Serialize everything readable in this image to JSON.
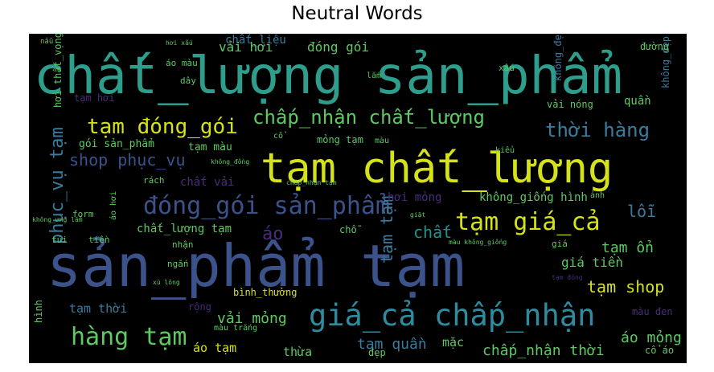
{
  "title": "Neutral Words",
  "chart_data": {
    "type": "wordcloud",
    "title": "Neutral Words",
    "background": "#000000",
    "palette": [
      "#2e9e8c",
      "#3b528b",
      "#d5e21a",
      "#5ec962",
      "#472d7b",
      "#21918c",
      "#440154"
    ],
    "words": [
      {
        "text": "chất_lượng sản_phẩm",
        "weight": 100,
        "color": "#2e9e8c"
      },
      {
        "text": "sản_phẩm tạm",
        "weight": 98,
        "color": "#3b528b"
      },
      {
        "text": "tạm chất_lượng",
        "weight": 80,
        "color": "#d5e21a"
      },
      {
        "text": "giá_cả chấp_nhận",
        "weight": 55,
        "color": "#2e8c9e"
      },
      {
        "text": "đóng_gói sản_phẩm",
        "weight": 45,
        "color": "#3b528b"
      },
      {
        "text": "tạm giá_cả",
        "weight": 44,
        "color": "#d5e21a"
      },
      {
        "text": "chấp_nhận chất_lượng",
        "weight": 40,
        "color": "#5ec962"
      },
      {
        "text": "tạm đóng_gói",
        "weight": 38,
        "color": "#d5e21a"
      },
      {
        "text": "hàng tạm",
        "weight": 42,
        "color": "#5ec962"
      },
      {
        "text": "thời hàng",
        "weight": 34,
        "color": "#3b7c9e"
      },
      {
        "text": "shop phục_vụ",
        "weight": 28,
        "color": "#3b528b"
      },
      {
        "text": "phục_vụ tạm",
        "weight": 30,
        "color": "#3b7c9e"
      },
      {
        "text": "tạm shop",
        "weight": 30,
        "color": "#d5e21a"
      },
      {
        "text": "tạm tạm",
        "weight": 30,
        "color": "#3b7c9e"
      },
      {
        "text": "chấp_nhận thời",
        "weight": 26,
        "color": "#5ec962"
      },
      {
        "text": "vải mỏng",
        "weight": 24,
        "color": "#5ec962"
      },
      {
        "text": "áo mỏng",
        "weight": 24,
        "color": "#5ec962"
      },
      {
        "text": "tạm quần",
        "weight": 22,
        "color": "#3b7c9e"
      },
      {
        "text": "lỗi",
        "weight": 24,
        "color": "#3b7c9e"
      },
      {
        "text": "áo",
        "weight": 26,
        "color": "#472d7b"
      },
      {
        "text": "chất",
        "weight": 24,
        "color": "#21918c"
      },
      {
        "text": "tạm ổn",
        "weight": 20,
        "color": "#5ec962"
      },
      {
        "text": "giá tiền",
        "weight": 18,
        "color": "#5ec962"
      },
      {
        "text": "tạm thời",
        "weight": 18,
        "color": "#3b7c9e"
      },
      {
        "text": "thừa",
        "weight": 18,
        "color": "#5ec962"
      },
      {
        "text": "áo tạm",
        "weight": 18,
        "color": "#d5e21a"
      },
      {
        "text": "mặc",
        "weight": 18,
        "color": "#5ec962"
      },
      {
        "text": "vải hơi",
        "weight": 16,
        "color": "#5ec962"
      },
      {
        "text": "đóng gói",
        "weight": 16,
        "color": "#5ec962"
      },
      {
        "text": "chất_liệu",
        "weight": 14,
        "color": "#3b7c9e"
      },
      {
        "text": "không_giống hình",
        "weight": 14,
        "color": "#5ec962"
      },
      {
        "text": "chất_lượng tạm",
        "weight": 14,
        "color": "#5ec962"
      },
      {
        "text": "chất vải",
        "weight": 14,
        "color": "#472d7b"
      },
      {
        "text": "hơi mỏng",
        "weight": 14,
        "color": "#472d7b"
      },
      {
        "text": "gói sản_phẩm",
        "weight": 13,
        "color": "#5ec962"
      },
      {
        "text": "tạm màu",
        "weight": 13,
        "color": "#5ec962"
      },
      {
        "text": "mỏng tạm",
        "weight": 12,
        "color": "#5ec962"
      },
      {
        "text": "vải nóng",
        "weight": 12,
        "color": "#5ec962"
      },
      {
        "text": "quần",
        "weight": 14,
        "color": "#5ec962"
      },
      {
        "text": "không_đẹp",
        "weight": 12,
        "color": "#3b7c9e"
      },
      {
        "text": "không_đẹp lắm",
        "weight": 12,
        "color": "#3b7c9e"
      },
      {
        "text": "bình_thường",
        "weight": 12,
        "color": "#d5e21a"
      },
      {
        "text": "rộng",
        "weight": 12,
        "color": "#472d7b"
      },
      {
        "text": "đẹp",
        "weight": 12,
        "color": "#5ec962"
      },
      {
        "text": "màu đen",
        "weight": 12,
        "color": "#472d7b"
      },
      {
        "text": "hình",
        "weight": 12,
        "color": "#5ec962"
      },
      {
        "text": "hơi thất_vọng",
        "weight": 12,
        "color": "#5ec962"
      },
      {
        "text": "tạm hơi",
        "weight": 12,
        "color": "#472d7b"
      },
      {
        "text": "đường",
        "weight": 12,
        "color": "#5ec962"
      },
      {
        "text": "xấu",
        "weight": 11,
        "color": "#5ec962"
      },
      {
        "text": "dây",
        "weight": 11,
        "color": "#5ec962"
      },
      {
        "text": "áo màu",
        "weight": 11,
        "color": "#5ec962"
      },
      {
        "text": "chỗ",
        "weight": 12,
        "color": "#5ec962"
      },
      {
        "text": "cổ áo",
        "weight": 12,
        "color": "#5ec962"
      },
      {
        "text": "túi",
        "weight": 11,
        "color": "#5ec962"
      },
      {
        "text": "tiền",
        "weight": 11,
        "color": "#5ec962"
      },
      {
        "text": "form",
        "weight": 11,
        "color": "#5ec962"
      },
      {
        "text": "rách",
        "weight": 11,
        "color": "#5ec962"
      },
      {
        "text": "nhận",
        "weight": 11,
        "color": "#5ec962"
      },
      {
        "text": "ngắn",
        "weight": 11,
        "color": "#5ec962"
      },
      {
        "text": "giá",
        "weight": 11,
        "color": "#5ec962"
      },
      {
        "text": "kiểu",
        "weight": 10,
        "color": "#5ec962"
      },
      {
        "text": "ảnh",
        "weight": 10,
        "color": "#5ec962"
      },
      {
        "text": "áo hơi",
        "weight": 10,
        "color": "#5ec962"
      },
      {
        "text": "màu trắng",
        "weight": 10,
        "color": "#5ec962"
      },
      {
        "text": "lắm",
        "weight": 10,
        "color": "#5ec962"
      },
      {
        "text": "nẫu",
        "weight": 9,
        "color": "#5ec962"
      },
      {
        "text": "hơi xấu",
        "weight": 8,
        "color": "#5ec962"
      },
      {
        "text": "không_đồng",
        "weight": 8,
        "color": "#5ec962"
      },
      {
        "text": "chấp_nhận tạm",
        "weight": 8,
        "color": "#5ec962"
      },
      {
        "text": "tạm đóng",
        "weight": 8,
        "color": "#472d7b"
      },
      {
        "text": "xù lông",
        "weight": 8,
        "color": "#5ec962"
      },
      {
        "text": "không_ưng lắm",
        "weight": 8,
        "color": "#5ec962"
      },
      {
        "text": "màu không_giống",
        "weight": 8,
        "color": "#5ec962"
      },
      {
        "text": "giặt",
        "weight": 8,
        "color": "#5ec962"
      },
      {
        "text": "cổ",
        "weight": 10,
        "color": "#5ec962"
      },
      {
        "text": "màu",
        "weight": 10,
        "color": "#5ec962"
      }
    ]
  }
}
